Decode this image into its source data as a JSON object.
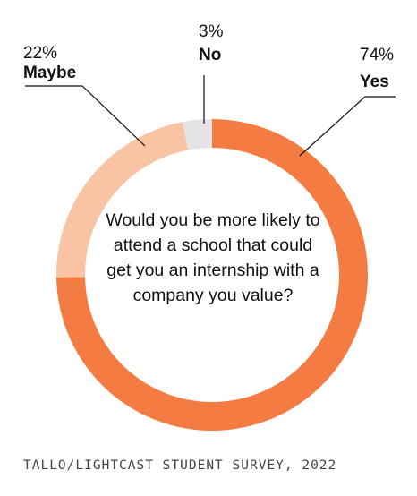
{
  "chart_data": {
    "type": "pie",
    "variant": "donut",
    "slices": [
      {
        "label": "Yes",
        "value": 74,
        "display": "74%",
        "color": "#F47B42"
      },
      {
        "label": "Maybe",
        "value": 22,
        "display": "22%",
        "color": "#F9C4A4"
      },
      {
        "label": "No",
        "value": 3,
        "display": "3%",
        "color": "#E4E4E6"
      }
    ],
    "center_text": "Would you be more likely to attend a school that could get you an internship with a company you value?",
    "source": "TALLO/LIGHTCAST STUDENT SURVEY, 2022"
  }
}
